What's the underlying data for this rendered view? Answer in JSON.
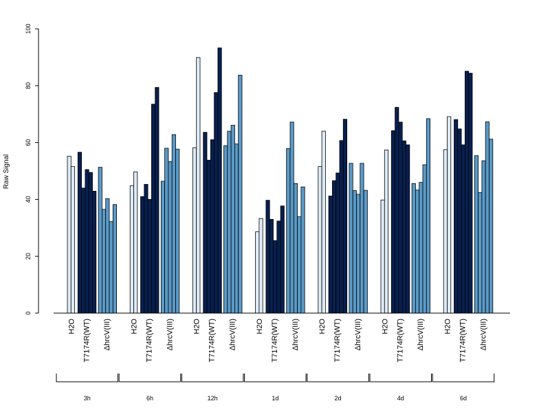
{
  "chart_data": {
    "type": "bar",
    "ylabel": "Raw Signal",
    "xlabel": "",
    "ylim": [
      0,
      100
    ],
    "yticks": [
      0,
      20,
      40,
      60,
      80,
      100
    ],
    "grid": false,
    "legend": "none",
    "conditions": [
      "H2O",
      "T7174R(WT)",
      "ΔhrcV(III)"
    ],
    "condition_colors": [
      "#deebf7",
      "#08204f",
      "#5a9ac7"
    ],
    "groups": [
      {
        "name": "3h",
        "series": [
          {
            "condition": "H2O",
            "values": [
              55.2,
              51.6
            ]
          },
          {
            "condition": "T7174R(WT)",
            "values": [
              56.6,
              44.0,
              50.5,
              49.5,
              42.9
            ]
          },
          {
            "condition": "ΔhrcV(III)",
            "values": [
              51.3,
              36.5,
              40.3,
              32.2,
              38.2
            ]
          }
        ]
      },
      {
        "name": "6h",
        "series": [
          {
            "condition": "H2O",
            "values": [
              44.8,
              49.7
            ]
          },
          {
            "condition": "T7174R(WT)",
            "values": [
              41.0,
              45.3,
              40.0,
              73.5,
              79.4
            ]
          },
          {
            "condition": "ΔhrcV(III)",
            "values": [
              46.4,
              58.0,
              53.3,
              62.8,
              57.7
            ]
          }
        ]
      },
      {
        "name": "12h",
        "series": [
          {
            "condition": "H2O",
            "values": [
              58.2,
              89.9
            ]
          },
          {
            "condition": "T7174R(WT)",
            "values": [
              63.6,
              53.8,
              61.0,
              77.6,
              93.3
            ]
          },
          {
            "condition": "ΔhrcV(III)",
            "values": [
              58.9,
              64.0,
              66.1,
              59.5,
              83.7
            ]
          }
        ]
      },
      {
        "name": "1d",
        "series": [
          {
            "condition": "H2O",
            "values": [
              28.6,
              33.3
            ]
          },
          {
            "condition": "T7174R(WT)",
            "values": [
              39.7,
              33.0,
              25.5,
              32.4,
              37.7
            ]
          },
          {
            "condition": "ΔhrcV(III)",
            "values": [
              57.9,
              67.2,
              45.6,
              33.9,
              44.4
            ]
          }
        ]
      },
      {
        "name": "2d",
        "series": [
          {
            "condition": "H2O",
            "values": [
              51.6,
              64.0
            ]
          },
          {
            "condition": "T7174R(WT)",
            "values": [
              41.2,
              46.6,
              49.3,
              60.7,
              68.2
            ]
          },
          {
            "condition": "ΔhrcV(III)",
            "values": [
              52.7,
              43.1,
              41.8,
              52.7,
              43.2
            ]
          }
        ]
      },
      {
        "name": "4d",
        "series": [
          {
            "condition": "H2O",
            "values": [
              39.8,
              57.4
            ]
          },
          {
            "condition": "T7174R(WT)",
            "values": [
              64.2,
              72.4,
              67.2,
              60.6,
              59.2
            ]
          },
          {
            "condition": "ΔhrcV(III)",
            "values": [
              45.6,
              43.3,
              46.0,
              52.2,
              68.4
            ]
          }
        ]
      },
      {
        "name": "6d",
        "series": [
          {
            "condition": "H2O",
            "values": [
              57.5,
              69.1
            ]
          },
          {
            "condition": "T7174R(WT)",
            "values": [
              68.1,
              64.8,
              59.2,
              85.1,
              84.4
            ]
          },
          {
            "condition": "ΔhrcV(III)",
            "values": [
              55.4,
              42.4,
              53.6,
              67.3,
              61.2
            ]
          }
        ]
      }
    ]
  }
}
